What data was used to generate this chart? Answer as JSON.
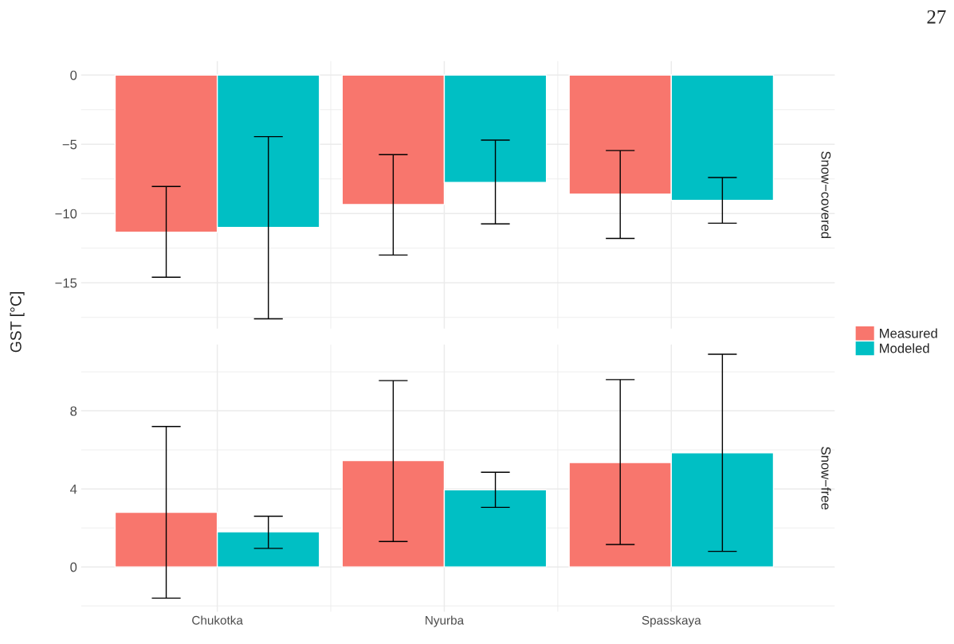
{
  "chart_data": [
    {
      "type": "bar",
      "title": "Snow−covered",
      "ylabel": "GST [°C]",
      "categories": [
        null,
        null,
        null
      ],
      "series": [
        {
          "name": "Measured",
          "color": "#f8766d",
          "values": [
            -11.35,
            -9.35,
            -8.6
          ],
          "errors": [
            [
              -14.6,
              -8.05
            ],
            [
              -13.0,
              -5.75
            ],
            [
              -11.8,
              -5.45
            ]
          ]
        },
        {
          "name": "Modeled",
          "color": "#00bfc4",
          "values": [
            -11.0,
            -7.75,
            -9.05
          ],
          "errors": [
            [
              -17.6,
              -4.45
            ],
            [
              -10.75,
              -4.7
            ],
            [
              -10.7,
              -7.4
            ]
          ]
        }
      ],
      "ylim": [
        -18.3,
        1.0
      ],
      "yticks": [
        {
          "value": -15,
          "label": "−15"
        },
        {
          "value": -10,
          "label": "−10"
        },
        {
          "value": -5,
          "label": "−5"
        },
        0
      ],
      "grid": true,
      "legend": "right",
      "tick_labels": "y",
      "annotations": [
        "27"
      ]
    },
    {
      "type": "bar",
      "title": "Snow−free",
      "categories": [
        "Chukotka",
        "Nyurba",
        "Spasskaya"
      ],
      "series": [
        {
          "color": "#f8766d",
          "values": [
            2.8,
            5.45,
            5.35
          ],
          "errors": [
            [
              -1.6,
              7.2
            ],
            [
              1.3,
              9.55
            ],
            [
              1.15,
              9.6
            ]
          ]
        },
        {
          "color": "#00bfc4",
          "values": [
            1.8,
            3.95,
            5.85
          ],
          "errors": [
            [
              0.95,
              2.6
            ],
            [
              3.05,
              4.85
            ],
            [
              0.8,
              10.9
            ]
          ]
        }
      ],
      "ylim": [
        -2.3,
        11.4
      ],
      "yticks": [
        0,
        4,
        8
      ],
      "grid": true
    }
  ]
}
